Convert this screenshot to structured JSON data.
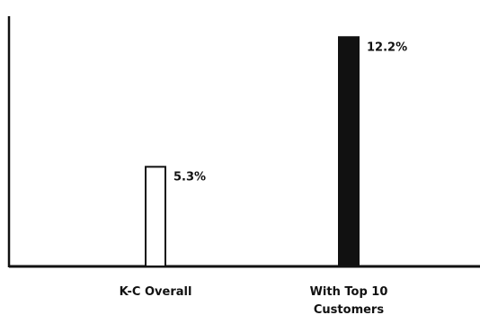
{
  "chart_data": {
    "type": "bar",
    "categories": [
      "K-C Overall",
      "With Top 10 Customers"
    ],
    "category_label_lines": [
      [
        "K-C Overall"
      ],
      [
        "With Top 10",
        "Customers"
      ]
    ],
    "values": [
      5.3,
      12.2
    ],
    "value_labels": [
      "5.3%",
      "12.2%"
    ],
    "bar_fill": [
      "#ffffff",
      "#111111"
    ],
    "title": "",
    "xlabel": "",
    "ylabel": "",
    "ylim": [
      0,
      12.5
    ],
    "grid": false,
    "legend": "none"
  }
}
